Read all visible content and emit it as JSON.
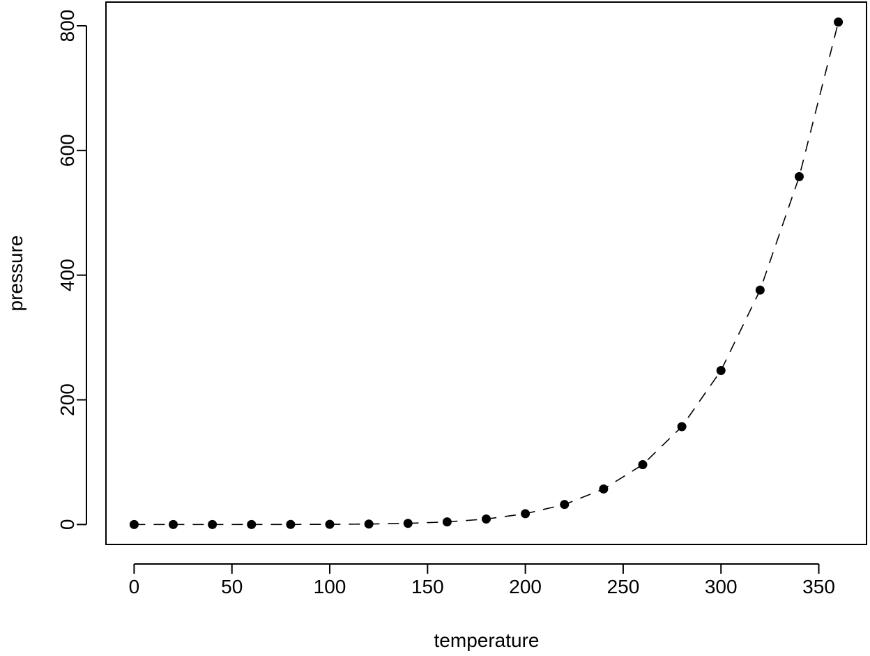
{
  "chart_data": {
    "type": "scatter",
    "title": "",
    "xlabel": "temperature",
    "ylabel": "pressure",
    "xlim": [
      -14.4,
      374.4
    ],
    "ylim": [
      -32.0,
      838.0
    ],
    "x_ticks": [
      0,
      50,
      100,
      150,
      200,
      250,
      300,
      350
    ],
    "y_ticks": [
      0,
      200,
      400,
      600,
      800
    ],
    "grid": false,
    "legend": "none",
    "connector": "dashed line through points",
    "series": [
      {
        "x": [
          0,
          20,
          40,
          60,
          80,
          100,
          120,
          140,
          160,
          180,
          200,
          220,
          240,
          260,
          280,
          300,
          320,
          340,
          360
        ],
        "y": [
          0.0002,
          0.0012,
          0.006,
          0.03,
          0.09,
          0.27,
          0.75,
          1.85,
          4.2,
          8.8,
          17.3,
          32.1,
          57.0,
          96.0,
          157.0,
          247.0,
          376.0,
          558.0,
          806.0
        ]
      }
    ],
    "colors": {
      "points": "#000000",
      "line": "#000000",
      "axes": "#000000"
    }
  }
}
